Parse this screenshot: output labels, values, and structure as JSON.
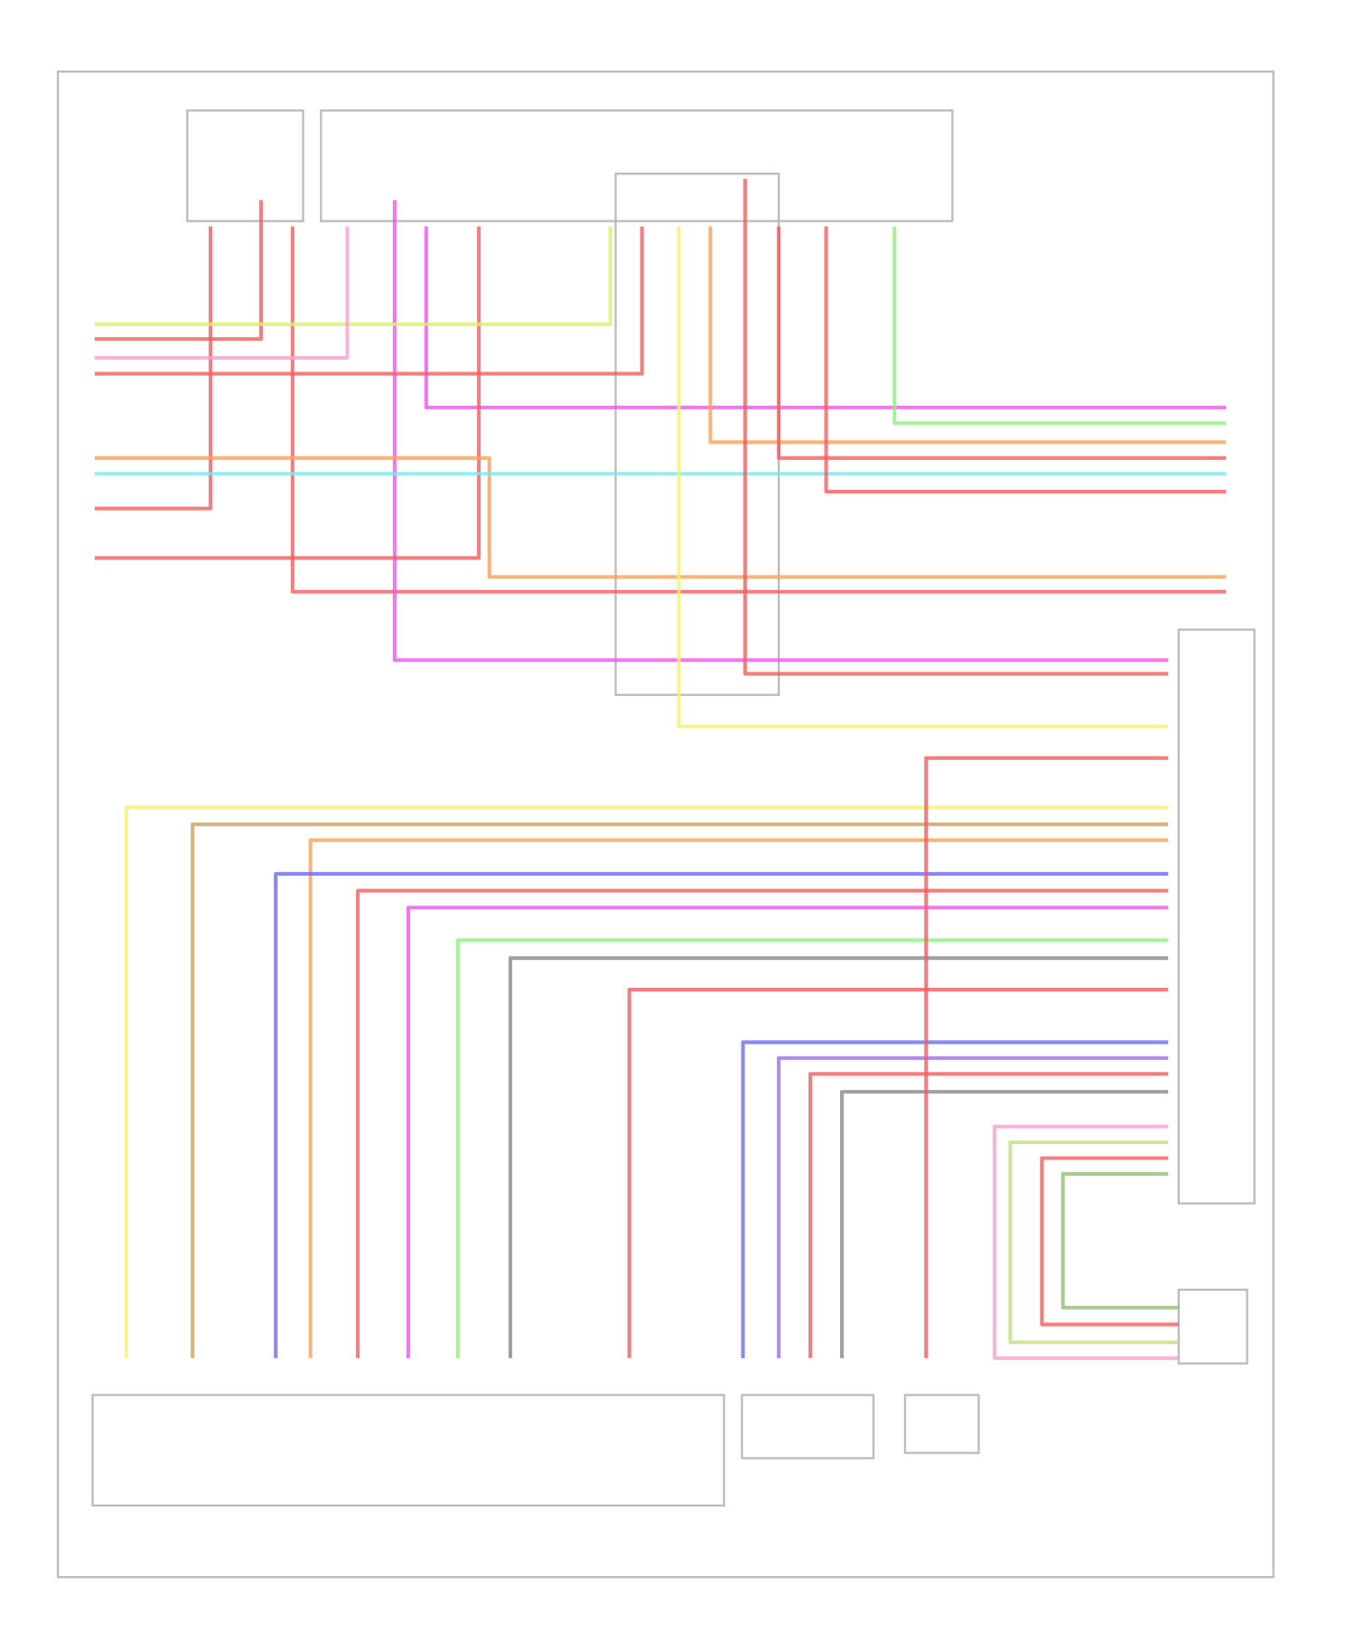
{
  "wires": [
    {
      "color": "#f25c5c"
    },
    {
      "color": "#f25c5c"
    },
    {
      "color": "#f25c5c"
    },
    {
      "color": "#ee55ee"
    },
    {
      "color": "#ee55ee"
    },
    {
      "color": "#f25c5c"
    },
    {
      "color": "#f5a25a"
    },
    {
      "color": "#7be8ee"
    },
    {
      "color": "#d8ee70"
    },
    {
      "color": "#f25c5c"
    },
    {
      "color": "#f8f070"
    },
    {
      "color": "#f5a25a"
    },
    {
      "color": "#f25c5c"
    },
    {
      "color": "#f25c5c"
    },
    {
      "color": "#f25c5c"
    },
    {
      "color": "#8ef07a"
    },
    {
      "color": "#f7a0d0"
    },
    {
      "color": "#f8f070"
    },
    {
      "color": "#c9a060"
    },
    {
      "color": "#f5a25a"
    },
    {
      "color": "#6a6af0"
    },
    {
      "color": "#f25c5c"
    },
    {
      "color": "#ee55ee"
    },
    {
      "color": "#8ef07a"
    },
    {
      "color": "#888888"
    },
    {
      "color": "#f25c5c"
    },
    {
      "color": "#6a6af0"
    },
    {
      "color": "#9a70e0"
    },
    {
      "color": "#f25c5c"
    },
    {
      "color": "#888888"
    },
    {
      "color": "#f25c5c"
    },
    {
      "color": "#f7a0d0"
    },
    {
      "color": "#c0e080"
    },
    {
      "color": "#f25c5c"
    },
    {
      "color": "#8ec070"
    }
  ]
}
